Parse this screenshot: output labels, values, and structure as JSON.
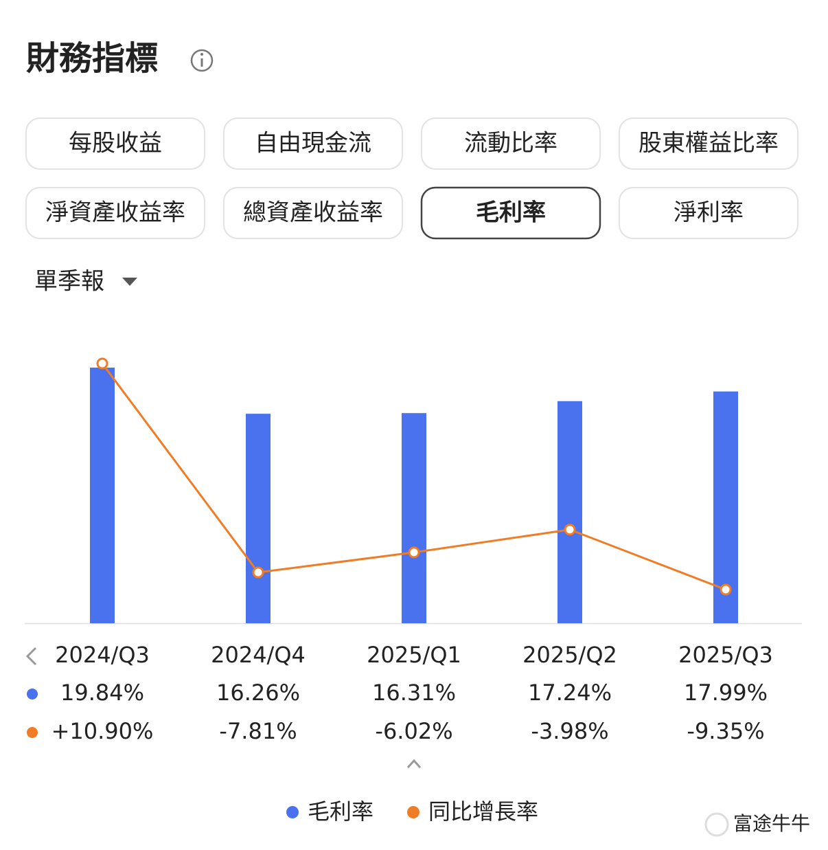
{
  "header": {
    "title": "財務指標"
  },
  "tabs": [
    "每股收益",
    "自由現金流",
    "流動比率",
    "股東權益比率",
    "淨資產收益率",
    "總資產收益率",
    "毛利率",
    "淨利率"
  ],
  "selected_tab": 6,
  "period_selector": "單季報",
  "chart_data": {
    "type": "combo",
    "categories": [
      "2024/Q3",
      "2024/Q4",
      "2025/Q1",
      "2025/Q2",
      "2025/Q3"
    ],
    "series": [
      {
        "name": "毛利率",
        "type": "bar",
        "color": "#4a72ee",
        "values": [
          19.84,
          16.26,
          16.31,
          17.24,
          17.99
        ],
        "value_labels": [
          "19.84%",
          "16.26%",
          "16.31%",
          "17.24%",
          "17.99%"
        ]
      },
      {
        "name": "同比增長率",
        "type": "line",
        "color": "#f07c26",
        "values": [
          10.9,
          -7.81,
          -6.02,
          -3.98,
          -9.35
        ],
        "value_labels": [
          "+10.90%",
          "-7.81%",
          "-6.02%",
          "-3.98%",
          "-9.35%"
        ]
      }
    ]
  },
  "watermark": "富途牛牛"
}
